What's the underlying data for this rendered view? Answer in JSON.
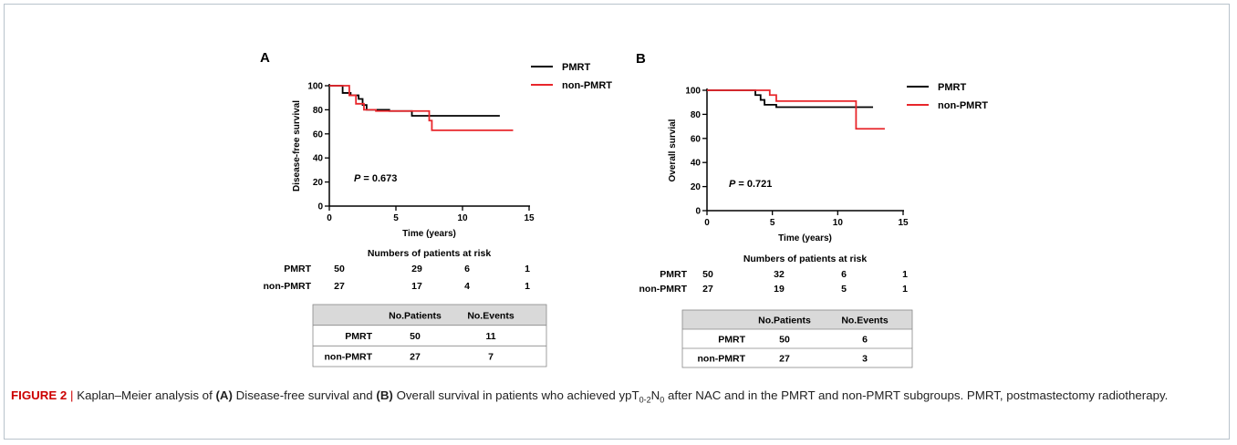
{
  "chart_data": [
    {
      "type": "line",
      "panel": "A",
      "xlabel": "Time (years)",
      "ylabel": "Disease-free survival",
      "xlim": [
        0,
        15
      ],
      "ylim": [
        0,
        100
      ],
      "xticks": [
        0,
        5,
        10,
        15
      ],
      "yticks": [
        0,
        20,
        40,
        60,
        80,
        100
      ],
      "annotation": {
        "p_label": "P",
        "p_value": "= 0.673"
      },
      "legend": "top-right",
      "series": [
        {
          "name": "PMRT",
          "color": "#000000",
          "x": [
            0,
            0.8,
            1.0,
            1.6,
            2.2,
            2.5,
            2.8,
            3.3,
            4.5,
            5.0,
            6.0,
            6.2,
            12.8
          ],
          "y": [
            100,
            100,
            94,
            92,
            89,
            84,
            80,
            80,
            79,
            79,
            79,
            75,
            75
          ]
        },
        {
          "name": "non-PMRT",
          "color": "#e8262b",
          "x": [
            0,
            1.2,
            1.5,
            2.0,
            2.6,
            3.5,
            6.0,
            7.5,
            7.7,
            13.8
          ],
          "y": [
            100,
            100,
            92,
            85,
            80,
            79,
            79,
            71,
            63,
            63
          ]
        }
      ],
      "risk_table": {
        "title": "Numbers of patients at risk",
        "rows": [
          {
            "label": "PMRT",
            "values": [
              "50",
              "29",
              "6",
              "1"
            ]
          },
          {
            "label": "non-PMRT",
            "values": [
              "27",
              "17",
              "4",
              "1"
            ]
          }
        ]
      },
      "summary_table": {
        "headers": [
          "No.Patients",
          "No.Events"
        ],
        "rows": [
          {
            "label": "PMRT",
            "values": [
              "50",
              "11"
            ]
          },
          {
            "label": "non-PMRT",
            "values": [
              "27",
              "7"
            ]
          }
        ]
      }
    },
    {
      "type": "line",
      "panel": "B",
      "xlabel": "Time (years)",
      "ylabel": "Overall survial",
      "xlim": [
        0,
        15
      ],
      "ylim": [
        0,
        100
      ],
      "xticks": [
        0,
        5,
        10,
        15
      ],
      "yticks": [
        0,
        20,
        40,
        60,
        80,
        100
      ],
      "annotation": {
        "p_label": "P",
        "p_value": "= 0.721"
      },
      "legend": "top-right",
      "series": [
        {
          "name": "PMRT",
          "color": "#000000",
          "x": [
            0,
            2.5,
            3.7,
            4.1,
            4.4,
            5.3,
            12.7
          ],
          "y": [
            100,
            100,
            96,
            92,
            88,
            86,
            86
          ]
        },
        {
          "name": "non-PMRT",
          "color": "#e8262b",
          "x": [
            0,
            1.8,
            4.8,
            5.3,
            11.3,
            11.4,
            13.6
          ],
          "y": [
            100,
            100,
            96,
            91,
            91,
            68,
            68
          ]
        }
      ],
      "risk_table": {
        "title": "Numbers of patients at risk",
        "rows": [
          {
            "label": "PMRT",
            "values": [
              "50",
              "32",
              "6",
              "1"
            ]
          },
          {
            "label": "non-PMRT",
            "values": [
              "27",
              "19",
              "5",
              "1"
            ]
          }
        ]
      },
      "summary_table": {
        "headers": [
          "No.Patients",
          "No.Events"
        ],
        "rows": [
          {
            "label": "PMRT",
            "values": [
              "50",
              "6"
            ]
          },
          {
            "label": "non-PMRT",
            "values": [
              "27",
              "3"
            ]
          }
        ]
      }
    }
  ],
  "caption": {
    "label": "FIGURE 2",
    "sep": "|",
    "t1": "Kaplan–Meier analysis of",
    "a_label": "(A)",
    "t2": "Disease-free survival and",
    "b_label": "(B)",
    "t3": "Overall survival in patients who achieved yp",
    "t_letter": "T",
    "t_sub": "0-2",
    "n_letter": "N",
    "n_sub": "0",
    "t4": "after NAC and in the PMRT and non-PMRT subgroups.  PMRT, postmastectomy radiotherapy."
  }
}
